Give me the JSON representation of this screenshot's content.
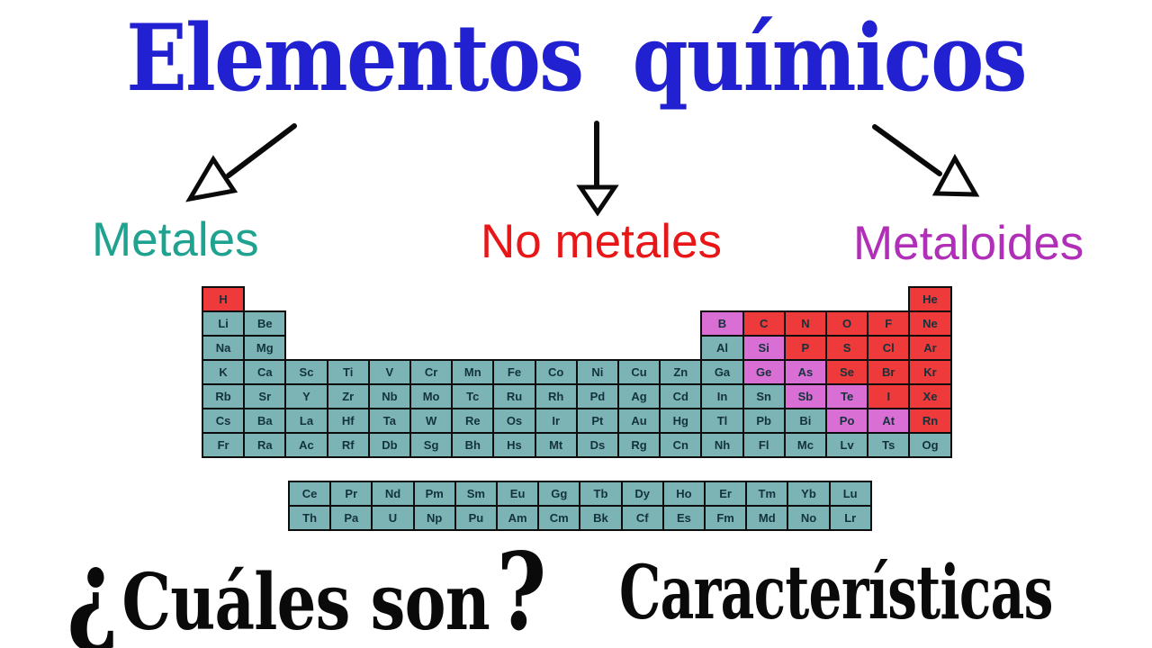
{
  "title": {
    "text": "Elementos químicos",
    "color": "#2121d2"
  },
  "categories": {
    "metales": {
      "label": "Metales",
      "color": "#1fa390"
    },
    "no_metales": {
      "label": "No metales",
      "color": "#e81616"
    },
    "metaloides": {
      "label": "Metaloides",
      "color": "#b02eb8"
    }
  },
  "bottom": {
    "question_open_mark": "¿",
    "question_words": "Cuáles son",
    "question_close_mark": "?",
    "right_text": "Características"
  },
  "periodic_table": {
    "cell_colors": {
      "metal": "#7cb4b5",
      "nonmetal": "#ee3a3a",
      "metalloid": "#d96fd4"
    },
    "symbol_color": "#13333b",
    "border_color": "#0d0d0d",
    "rows": [
      [
        [
          "H",
          1,
          "nonmetal"
        ],
        [
          "He",
          18,
          "nonmetal"
        ]
      ],
      [
        [
          "Li",
          1,
          "metal"
        ],
        [
          "Be",
          2,
          "metal"
        ],
        [
          "B",
          13,
          "metalloid"
        ],
        [
          "C",
          14,
          "nonmetal"
        ],
        [
          "N",
          15,
          "nonmetal"
        ],
        [
          "O",
          16,
          "nonmetal"
        ],
        [
          "F",
          17,
          "nonmetal"
        ],
        [
          "Ne",
          18,
          "nonmetal"
        ]
      ],
      [
        [
          "Na",
          1,
          "metal"
        ],
        [
          "Mg",
          2,
          "metal"
        ],
        [
          "Al",
          13,
          "metal"
        ],
        [
          "Si",
          14,
          "metalloid"
        ],
        [
          "P",
          15,
          "nonmetal"
        ],
        [
          "S",
          16,
          "nonmetal"
        ],
        [
          "Cl",
          17,
          "nonmetal"
        ],
        [
          "Ar",
          18,
          "nonmetal"
        ]
      ],
      [
        [
          "K",
          1,
          "metal"
        ],
        [
          "Ca",
          2,
          "metal"
        ],
        [
          "Sc",
          3,
          "metal"
        ],
        [
          "Ti",
          4,
          "metal"
        ],
        [
          "V",
          5,
          "metal"
        ],
        [
          "Cr",
          6,
          "metal"
        ],
        [
          "Mn",
          7,
          "metal"
        ],
        [
          "Fe",
          8,
          "metal"
        ],
        [
          "Co",
          9,
          "metal"
        ],
        [
          "Ni",
          10,
          "metal"
        ],
        [
          "Cu",
          11,
          "metal"
        ],
        [
          "Zn",
          12,
          "metal"
        ],
        [
          "Ga",
          13,
          "metal"
        ],
        [
          "Ge",
          14,
          "metalloid"
        ],
        [
          "As",
          15,
          "metalloid"
        ],
        [
          "Se",
          16,
          "nonmetal"
        ],
        [
          "Br",
          17,
          "nonmetal"
        ],
        [
          "Kr",
          18,
          "nonmetal"
        ]
      ],
      [
        [
          "Rb",
          1,
          "metal"
        ],
        [
          "Sr",
          2,
          "metal"
        ],
        [
          "Y",
          3,
          "metal"
        ],
        [
          "Zr",
          4,
          "metal"
        ],
        [
          "Nb",
          5,
          "metal"
        ],
        [
          "Mo",
          6,
          "metal"
        ],
        [
          "Tc",
          7,
          "metal"
        ],
        [
          "Ru",
          8,
          "metal"
        ],
        [
          "Rh",
          9,
          "metal"
        ],
        [
          "Pd",
          10,
          "metal"
        ],
        [
          "Ag",
          11,
          "metal"
        ],
        [
          "Cd",
          12,
          "metal"
        ],
        [
          "In",
          13,
          "metal"
        ],
        [
          "Sn",
          14,
          "metal"
        ],
        [
          "Sb",
          15,
          "metalloid"
        ],
        [
          "Te",
          16,
          "metalloid"
        ],
        [
          "I",
          17,
          "nonmetal"
        ],
        [
          "Xe",
          18,
          "nonmetal"
        ]
      ],
      [
        [
          "Cs",
          1,
          "metal"
        ],
        [
          "Ba",
          2,
          "metal"
        ],
        [
          "La",
          3,
          "metal"
        ],
        [
          "Hf",
          4,
          "metal"
        ],
        [
          "Ta",
          5,
          "metal"
        ],
        [
          "W",
          6,
          "metal"
        ],
        [
          "Re",
          7,
          "metal"
        ],
        [
          "Os",
          8,
          "metal"
        ],
        [
          "Ir",
          9,
          "metal"
        ],
        [
          "Pt",
          10,
          "metal"
        ],
        [
          "Au",
          11,
          "metal"
        ],
        [
          "Hg",
          12,
          "metal"
        ],
        [
          "Tl",
          13,
          "metal"
        ],
        [
          "Pb",
          14,
          "metal"
        ],
        [
          "Bi",
          15,
          "metal"
        ],
        [
          "Po",
          16,
          "metalloid"
        ],
        [
          "At",
          17,
          "metalloid"
        ],
        [
          "Rn",
          18,
          "nonmetal"
        ]
      ],
      [
        [
          "Fr",
          1,
          "metal"
        ],
        [
          "Ra",
          2,
          "metal"
        ],
        [
          "Ac",
          3,
          "metal"
        ],
        [
          "Rf",
          4,
          "metal"
        ],
        [
          "Db",
          5,
          "metal"
        ],
        [
          "Sg",
          6,
          "metal"
        ],
        [
          "Bh",
          7,
          "metal"
        ],
        [
          "Hs",
          8,
          "metal"
        ],
        [
          "Mt",
          9,
          "metal"
        ],
        [
          "Ds",
          10,
          "metal"
        ],
        [
          "Rg",
          11,
          "metal"
        ],
        [
          "Cn",
          12,
          "metal"
        ],
        [
          "Nh",
          13,
          "metal"
        ],
        [
          "Fl",
          14,
          "metal"
        ],
        [
          "Mc",
          15,
          "metal"
        ],
        [
          "Lv",
          16,
          "metal"
        ],
        [
          "Ts",
          17,
          "metal"
        ],
        [
          "Og",
          18,
          "metal"
        ]
      ]
    ],
    "f_block": [
      [
        "Ce",
        "Pr",
        "Nd",
        "Pm",
        "Sm",
        "Eu",
        "Gg",
        "Tb",
        "Dy",
        "Ho",
        "Er",
        "Tm",
        "Yb",
        "Lu"
      ],
      [
        "Th",
        "Pa",
        "U",
        "Np",
        "Pu",
        "Am",
        "Cm",
        "Bk",
        "Cf",
        "Es",
        "Fm",
        "Md",
        "No",
        "Lr"
      ]
    ]
  }
}
